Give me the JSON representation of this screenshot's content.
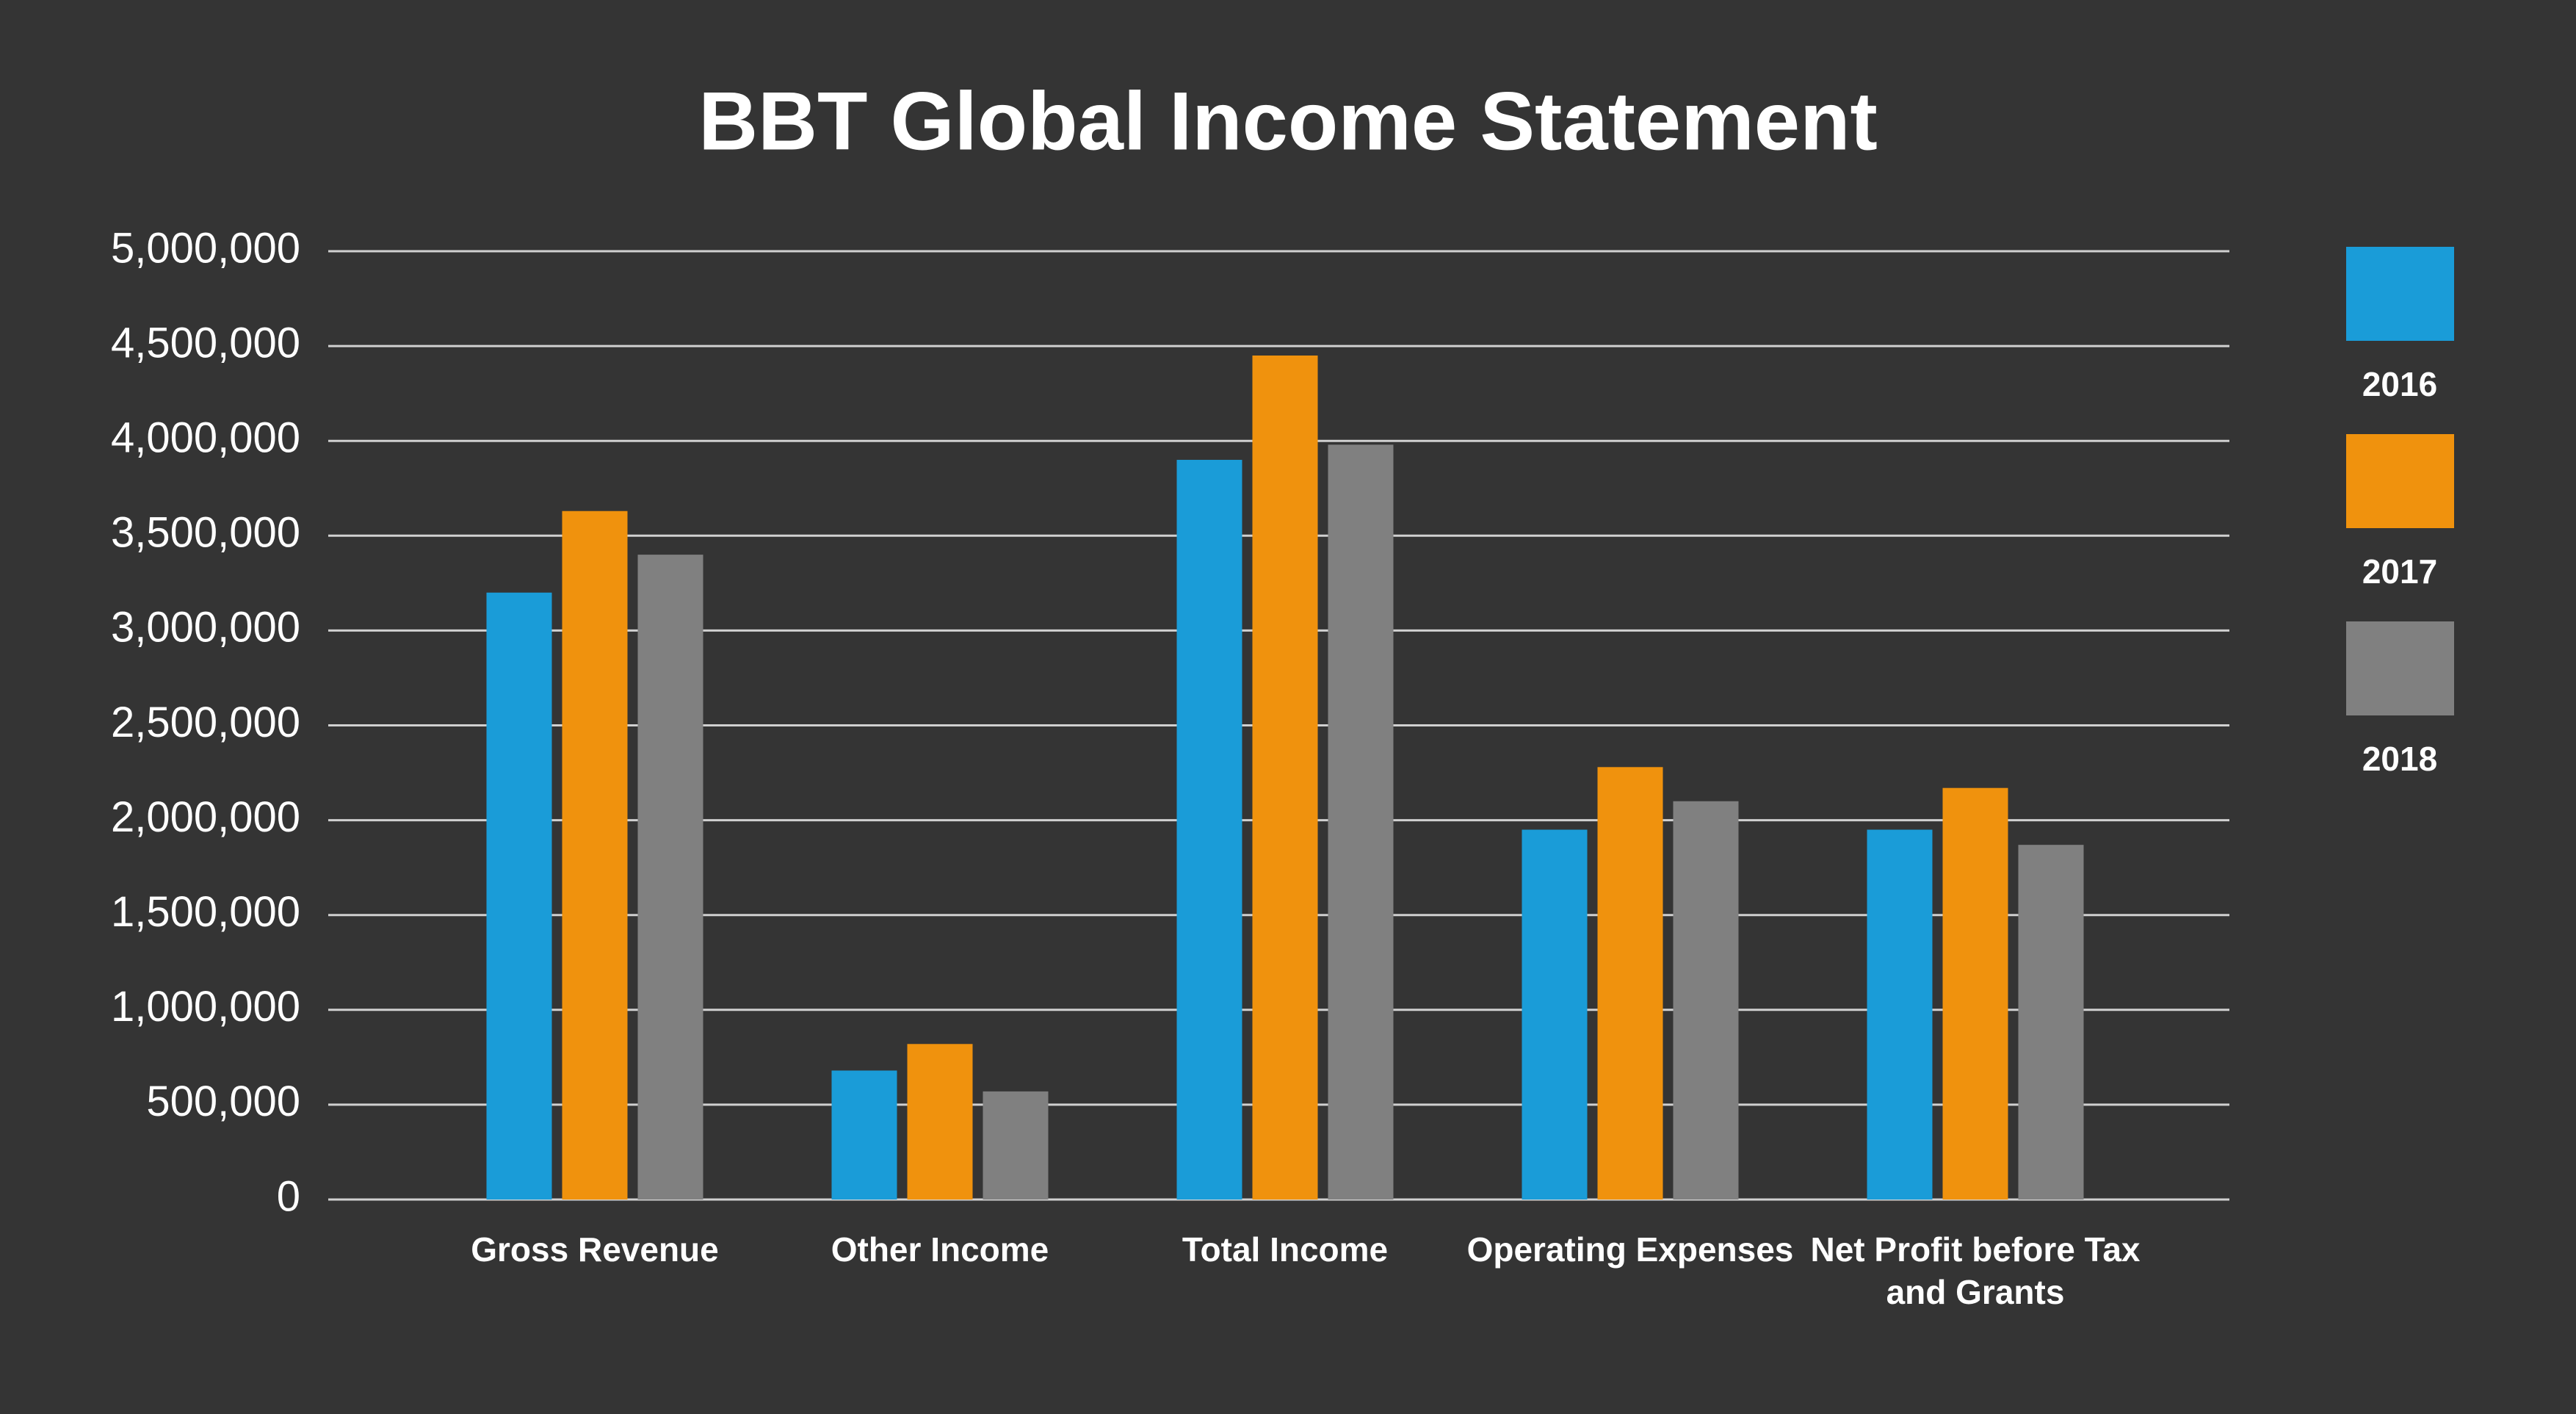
{
  "chart_data": {
    "type": "bar",
    "title": "BBT Global Income Statement",
    "categories": [
      "Gross Revenue",
      "Other Income",
      "Total Income",
      "Operating Expenses",
      "Net Profit before Tax and Grants"
    ],
    "series": [
      {
        "name": "2016",
        "color": "#1a9cd8",
        "values": [
          3200000,
          680000,
          3900000,
          1950000,
          1950000
        ]
      },
      {
        "name": "2017",
        "color": "#f0920d",
        "values": [
          3630000,
          820000,
          4450000,
          2280000,
          2170000
        ]
      },
      {
        "name": "2018",
        "color": "#808080",
        "values": [
          3400000,
          570000,
          3980000,
          2100000,
          1870000
        ]
      }
    ],
    "ylim": [
      0,
      5000000
    ],
    "yticks": [
      0,
      {
        "value": 500000,
        "label": "500,000"
      },
      {
        "value": 1000000,
        "label": "1,000,000"
      },
      {
        "value": 1500000,
        "label": "1,500,000"
      },
      {
        "value": 2000000,
        "label": "2,000,000"
      },
      {
        "value": 2500000,
        "label": "2,500,000"
      },
      {
        "value": 3000000,
        "label": "3,000,000"
      },
      {
        "value": 3500000,
        "label": "3,500,000"
      },
      {
        "value": 4000000,
        "label": "4,000,000"
      },
      {
        "value": 4500000,
        "label": "4,500,000"
      },
      {
        "value": 5000000,
        "label": "5,000,000"
      }
    ],
    "grid": true,
    "legend": "right"
  }
}
